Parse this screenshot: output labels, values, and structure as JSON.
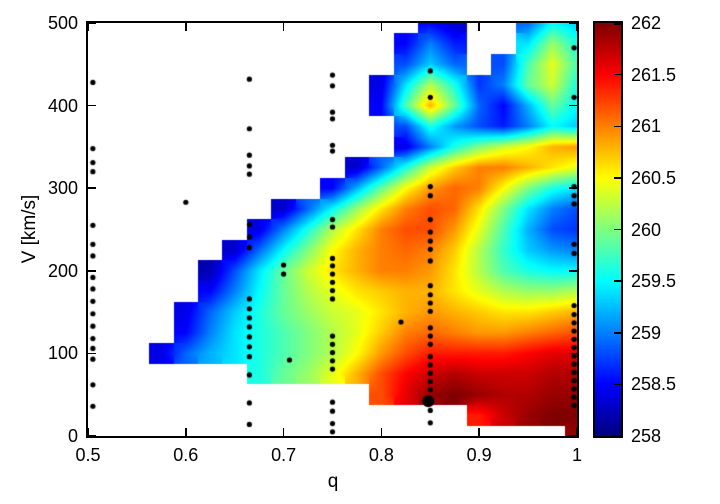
{
  "figure": {
    "background": "#ffffff",
    "axis_color": "#000000"
  },
  "chart_data": {
    "type": "heatmap",
    "title": "",
    "xlabel": "q",
    "ylabel": "V [km/s]",
    "xlim": [
      0.5,
      1.0
    ],
    "ylim": [
      0,
      500
    ],
    "xticks": [
      0.5,
      0.6,
      0.7,
      0.8,
      0.9,
      1
    ],
    "xtick_labels": [
      "0.5",
      "0.6",
      "0.7",
      "0.8",
      "0.9",
      "1"
    ],
    "yticks": [
      0,
      100,
      200,
      300,
      400,
      500
    ],
    "ytick_labels": [
      "0",
      "100",
      "200",
      "300",
      "400",
      "500"
    ],
    "palette": "jet",
    "grid_lines": false,
    "colorbar": {
      "min": 258,
      "max": 262,
      "ticks": [
        258,
        258.5,
        259,
        259.5,
        260,
        260.5,
        261,
        261.5,
        262
      ],
      "tick_labels": [
        "258",
        "258.5",
        "259",
        "259.5",
        "260",
        "260.5",
        "261",
        "261.5",
        "262"
      ]
    },
    "grid": {
      "q": [
        0.5,
        0.525,
        0.55,
        0.575,
        0.6,
        0.625,
        0.65,
        0.675,
        0.7,
        0.725,
        0.75,
        0.775,
        0.8,
        0.825,
        0.85,
        0.875,
        0.9,
        0.925,
        0.95,
        0.975,
        1.0
      ],
      "v": [
        0,
        25,
        50,
        75,
        100,
        125,
        150,
        175,
        200,
        225,
        250,
        275,
        300,
        325,
        350,
        375,
        400,
        425,
        450,
        475,
        500
      ],
      "values": [
        [
          null,
          null,
          null,
          null,
          null,
          null,
          null,
          null,
          null,
          null,
          null,
          null,
          null,
          null,
          null,
          null,
          null,
          null,
          null,
          null,
          261.9
        ],
        [
          null,
          null,
          null,
          null,
          null,
          null,
          null,
          null,
          null,
          null,
          null,
          null,
          null,
          null,
          null,
          null,
          261.4,
          261.7,
          261.9,
          262.0,
          262.0
        ],
        [
          null,
          null,
          null,
          null,
          null,
          null,
          null,
          null,
          null,
          null,
          null,
          null,
          261.2,
          261.6,
          261.9,
          262.0,
          261.9,
          261.8,
          261.8,
          261.9,
          261.9
        ],
        [
          null,
          null,
          null,
          null,
          null,
          null,
          null,
          259.6,
          259.9,
          260.1,
          260.4,
          260.8,
          261.2,
          261.5,
          261.7,
          261.8,
          261.7,
          261.7,
          261.7,
          261.8,
          261.8
        ],
        [
          null,
          null,
          null,
          258.4,
          258.9,
          259.2,
          259.4,
          259.6,
          259.8,
          260.0,
          260.2,
          260.5,
          260.9,
          261.2,
          261.4,
          261.4,
          261.4,
          261.4,
          261.5,
          261.6,
          261.6
        ],
        [
          null,
          null,
          null,
          null,
          258.5,
          259.0,
          259.4,
          259.6,
          259.8,
          260.0,
          260.2,
          260.4,
          260.7,
          261.0,
          261.1,
          261.0,
          260.9,
          260.9,
          261.0,
          261.1,
          261.2
        ],
        [
          null,
          null,
          null,
          null,
          258.4,
          258.9,
          259.3,
          259.6,
          259.9,
          260.1,
          260.3,
          260.4,
          260.6,
          260.8,
          260.9,
          260.8,
          260.7,
          260.6,
          260.6,
          260.7,
          260.8
        ],
        [
          null,
          null,
          null,
          null,
          null,
          258.5,
          259.0,
          259.5,
          259.9,
          260.2,
          260.4,
          260.6,
          260.7,
          260.8,
          260.8,
          260.6,
          260.4,
          260.2,
          260.1,
          260.1,
          260.2
        ],
        [
          null,
          null,
          null,
          null,
          null,
          258.2,
          258.8,
          259.4,
          259.9,
          260.3,
          260.6,
          260.8,
          261.0,
          261.0,
          260.9,
          260.6,
          260.2,
          259.8,
          259.6,
          259.5,
          259.5
        ],
        [
          null,
          null,
          null,
          null,
          null,
          null,
          258.3,
          258.9,
          259.5,
          260.0,
          260.5,
          260.8,
          261.0,
          261.1,
          261.0,
          260.7,
          260.2,
          259.7,
          259.3,
          259.1,
          259.0
        ],
        [
          null,
          null,
          null,
          null,
          null,
          null,
          null,
          258.4,
          259.0,
          259.6,
          260.2,
          260.6,
          261.0,
          261.2,
          261.2,
          260.9,
          260.4,
          259.8,
          259.2,
          258.8,
          258.7
        ],
        [
          null,
          null,
          null,
          null,
          null,
          null,
          null,
          null,
          258.3,
          258.9,
          259.5,
          260.1,
          260.6,
          261.0,
          261.2,
          261.1,
          260.6,
          260.0,
          259.4,
          259.0,
          258.8
        ],
        [
          null,
          null,
          null,
          null,
          null,
          null,
          null,
          null,
          null,
          null,
          258.5,
          259.2,
          259.9,
          260.5,
          260.9,
          261.1,
          261.0,
          260.5,
          260.0,
          259.6,
          259.4
        ],
        [
          null,
          null,
          null,
          null,
          null,
          null,
          null,
          null,
          null,
          null,
          null,
          258.3,
          258.9,
          259.6,
          260.3,
          260.7,
          261.0,
          261.0,
          260.8,
          260.6,
          260.4
        ],
        [
          null,
          null,
          null,
          null,
          null,
          null,
          null,
          null,
          null,
          null,
          null,
          null,
          null,
          258.4,
          259.0,
          259.6,
          260.0,
          260.3,
          260.5,
          260.8,
          260.9
        ],
        [
          null,
          null,
          null,
          null,
          null,
          null,
          null,
          null,
          null,
          null,
          null,
          null,
          null,
          258.8,
          259.6,
          259.1,
          258.8,
          258.6,
          259.0,
          259.5,
          259.3
        ],
        [
          null,
          null,
          null,
          null,
          null,
          null,
          null,
          null,
          null,
          null,
          null,
          null,
          258.5,
          259.8,
          260.8,
          259.9,
          258.9,
          258.5,
          259.2,
          259.9,
          259.5
        ],
        [
          null,
          null,
          null,
          null,
          null,
          null,
          null,
          null,
          null,
          null,
          null,
          null,
          258.4,
          259.4,
          260.2,
          259.6,
          258.7,
          259.0,
          259.9,
          260.3,
          259.6
        ],
        [
          null,
          null,
          null,
          null,
          null,
          null,
          null,
          null,
          null,
          null,
          null,
          null,
          null,
          258.8,
          259.3,
          258.9,
          null,
          258.8,
          259.8,
          260.4,
          259.8
        ],
        [
          null,
          null,
          null,
          null,
          null,
          null,
          null,
          null,
          null,
          null,
          null,
          null,
          null,
          258.5,
          259.0,
          258.6,
          null,
          null,
          259.4,
          260.1,
          259.6
        ],
        [
          null,
          null,
          null,
          null,
          null,
          null,
          null,
          null,
          null,
          null,
          null,
          null,
          null,
          null,
          258.5,
          258.3,
          null,
          null,
          258.9,
          259.5,
          259.3
        ]
      ]
    },
    "scatter": {
      "marker": "circle",
      "color": "#000000",
      "marker_radius": 2.6,
      "big_marker_radius": 6,
      "big_point": [
        0.848,
        42
      ],
      "points": [
        [
          0.505,
          428
        ],
        [
          0.505,
          348
        ],
        [
          0.505,
          331
        ],
        [
          0.505,
          320
        ],
        [
          0.505,
          255
        ],
        [
          0.505,
          232
        ],
        [
          0.505,
          218
        ],
        [
          0.505,
          192
        ],
        [
          0.505,
          178
        ],
        [
          0.505,
          163
        ],
        [
          0.505,
          148
        ],
        [
          0.505,
          133
        ],
        [
          0.505,
          118
        ],
        [
          0.505,
          106
        ],
        [
          0.505,
          93
        ],
        [
          0.505,
          62
        ],
        [
          0.505,
          36
        ],
        [
          0.6,
          283
        ],
        [
          0.665,
          432
        ],
        [
          0.665,
          372
        ],
        [
          0.665,
          340
        ],
        [
          0.665,
          327
        ],
        [
          0.665,
          317
        ],
        [
          0.665,
          256
        ],
        [
          0.665,
          241
        ],
        [
          0.665,
          228
        ],
        [
          0.665,
          166
        ],
        [
          0.665,
          154
        ],
        [
          0.665,
          143
        ],
        [
          0.665,
          132
        ],
        [
          0.665,
          120
        ],
        [
          0.665,
          108
        ],
        [
          0.665,
          96
        ],
        [
          0.665,
          74
        ],
        [
          0.665,
          40
        ],
        [
          0.665,
          14
        ],
        [
          0.7,
          207
        ],
        [
          0.7,
          196
        ],
        [
          0.706,
          92
        ],
        [
          0.75,
          437
        ],
        [
          0.75,
          424
        ],
        [
          0.75,
          392
        ],
        [
          0.75,
          384
        ],
        [
          0.75,
          352
        ],
        [
          0.75,
          345
        ],
        [
          0.75,
          262
        ],
        [
          0.75,
          253
        ],
        [
          0.75,
          215
        ],
        [
          0.75,
          206
        ],
        [
          0.75,
          196
        ],
        [
          0.75,
          186
        ],
        [
          0.75,
          176
        ],
        [
          0.75,
          166
        ],
        [
          0.75,
          121
        ],
        [
          0.75,
          111
        ],
        [
          0.75,
          101
        ],
        [
          0.75,
          91
        ],
        [
          0.75,
          81
        ],
        [
          0.75,
          41
        ],
        [
          0.75,
          30
        ],
        [
          0.75,
          15
        ],
        [
          0.75,
          5
        ],
        [
          0.82,
          138
        ],
        [
          0.85,
          442
        ],
        [
          0.85,
          410
        ],
        [
          0.85,
          302
        ],
        [
          0.85,
          291
        ],
        [
          0.85,
          262
        ],
        [
          0.85,
          247
        ],
        [
          0.85,
          236
        ],
        [
          0.85,
          226
        ],
        [
          0.85,
          212
        ],
        [
          0.85,
          182
        ],
        [
          0.85,
          171
        ],
        [
          0.85,
          161
        ],
        [
          0.85,
          151
        ],
        [
          0.85,
          131
        ],
        [
          0.85,
          121
        ],
        [
          0.85,
          111
        ],
        [
          0.85,
          96
        ],
        [
          0.85,
          86
        ],
        [
          0.85,
          76
        ],
        [
          0.85,
          66
        ],
        [
          0.85,
          56
        ],
        [
          0.85,
          31
        ],
        [
          0.85,
          16
        ],
        [
          0.997,
          470
        ],
        [
          0.997,
          410
        ],
        [
          0.997,
          302
        ],
        [
          0.997,
          291
        ],
        [
          0.997,
          281
        ],
        [
          0.997,
          232
        ],
        [
          0.997,
          221
        ],
        [
          0.997,
          158
        ],
        [
          0.997,
          147
        ],
        [
          0.997,
          137
        ],
        [
          0.997,
          127
        ],
        [
          0.997,
          117
        ],
        [
          0.997,
          107
        ],
        [
          0.997,
          97
        ],
        [
          0.997,
          87
        ],
        [
          0.997,
          77
        ],
        [
          0.997,
          67
        ],
        [
          0.997,
          57
        ],
        [
          0.997,
          47
        ],
        [
          0.997,
          37
        ]
      ]
    }
  }
}
